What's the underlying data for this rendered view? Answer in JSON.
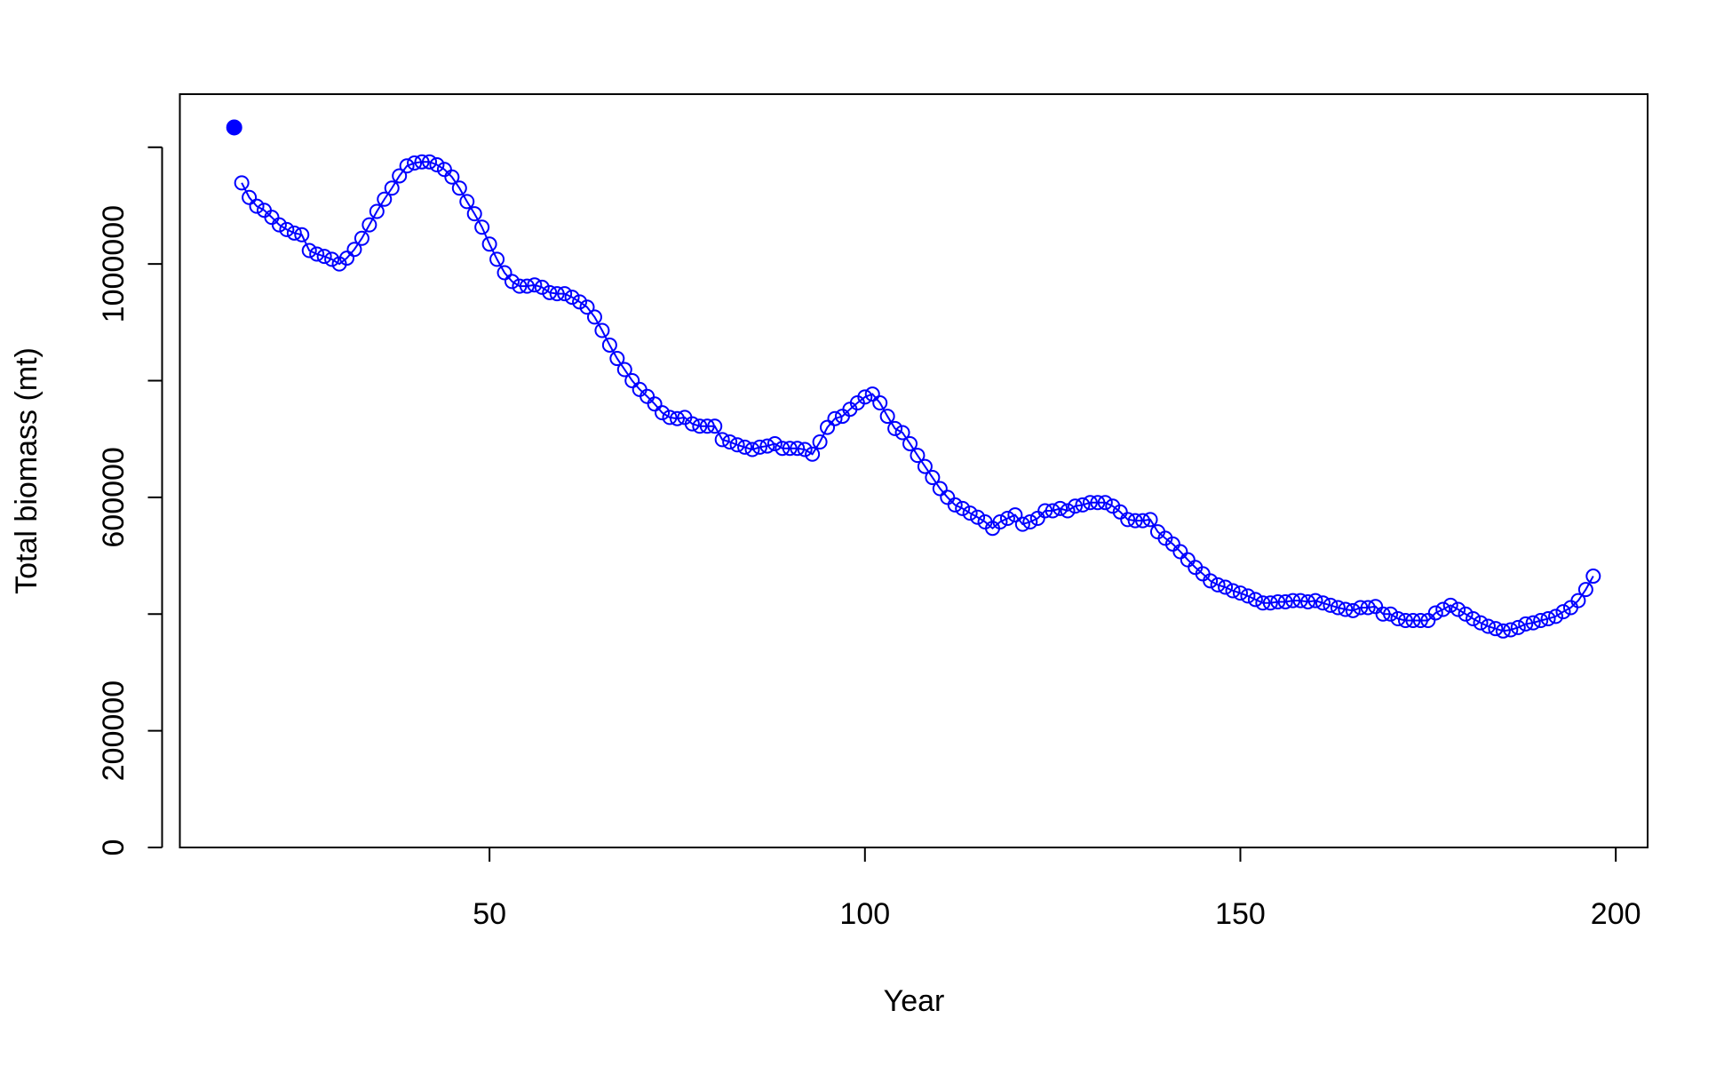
{
  "chart_data": {
    "type": "line",
    "xlabel": "Year",
    "ylabel": "Total biomass (mt)",
    "xlim": [
      8.76,
      204.24
    ],
    "xticks": [
      50,
      100,
      150,
      200
    ],
    "ylim": [
      0,
      1291000
    ],
    "yticks": [
      0,
      200000,
      600000,
      1000000
    ],
    "yticks_unlabeled": [
      400000,
      800000,
      1200000
    ],
    "color": "#0000ff",
    "highlight": {
      "x": 16,
      "value": 1234000
    },
    "x": [
      17,
      18,
      19,
      20,
      21,
      22,
      23,
      24,
      25,
      26,
      27,
      28,
      29,
      30,
      31,
      32,
      33,
      34,
      35,
      36,
      37,
      38,
      39,
      40,
      41,
      42,
      43,
      44,
      45,
      46,
      47,
      48,
      49,
      50,
      51,
      52,
      53,
      54,
      55,
      56,
      57,
      58,
      59,
      60,
      61,
      62,
      63,
      64,
      65,
      66,
      67,
      68,
      69,
      70,
      71,
      72,
      73,
      74,
      75,
      76,
      77,
      78,
      79,
      80,
      81,
      82,
      83,
      84,
      85,
      86,
      87,
      88,
      89,
      90,
      91,
      92,
      93,
      94,
      95,
      96,
      97,
      98,
      99,
      100,
      101,
      102,
      103,
      104,
      105,
      106,
      107,
      108,
      109,
      110,
      111,
      112,
      113,
      114,
      115,
      116,
      117,
      118,
      119,
      120,
      121,
      122,
      123,
      124,
      125,
      126,
      127,
      128,
      129,
      130,
      131,
      132,
      133,
      134,
      135,
      136,
      137,
      138,
      139,
      140,
      141,
      142,
      143,
      144,
      145,
      146,
      147,
      148,
      149,
      150,
      151,
      152,
      153,
      154,
      155,
      156,
      157,
      158,
      159,
      160,
      161,
      162,
      163,
      164,
      165,
      166,
      167,
      168,
      169,
      170,
      171,
      172,
      173,
      174,
      175,
      176,
      177,
      178,
      179,
      180,
      181,
      182,
      183,
      184,
      185,
      186,
      187,
      188,
      189,
      190,
      191,
      192,
      193,
      194,
      195,
      196,
      197
    ],
    "values": [
      1139000,
      1114000,
      1099000,
      1092000,
      1080000,
      1067000,
      1059000,
      1053000,
      1050000,
      1023000,
      1017000,
      1013000,
      1008000,
      1000000,
      1010000,
      1025000,
      1044000,
      1067000,
      1090000,
      1111000,
      1130000,
      1151000,
      1168000,
      1173000,
      1175000,
      1175000,
      1170000,
      1162000,
      1149000,
      1130000,
      1107000,
      1086000,
      1063000,
      1034000,
      1008000,
      985000,
      970000,
      962000,
      962000,
      964000,
      960000,
      951000,
      949000,
      949000,
      943000,
      935000,
      926000,
      909000,
      886000,
      861000,
      838000,
      819000,
      800000,
      785000,
      773000,
      760000,
      745000,
      737000,
      735000,
      737000,
      726000,
      722000,
      722000,
      722000,
      699000,
      695000,
      690000,
      686000,
      682000,
      686000,
      688000,
      692000,
      684000,
      684000,
      684000,
      682000,
      674000,
      695000,
      720000,
      735000,
      739000,
      751000,
      762000,
      772000,
      777000,
      762000,
      739000,
      718000,
      711000,
      692000,
      672000,
      653000,
      634000,
      615000,
      600000,
      587000,
      581000,
      573000,
      566000,
      558000,
      547000,
      558000,
      564000,
      570000,
      554000,
      558000,
      564000,
      577000,
      577000,
      581000,
      577000,
      585000,
      587000,
      591000,
      591000,
      591000,
      585000,
      575000,
      562000,
      560000,
      560000,
      562000,
      541000,
      530000,
      520000,
      507000,
      493000,
      480000,
      469000,
      457000,
      450000,
      446000,
      440000,
      436000,
      431000,
      425000,
      419000,
      419000,
      421000,
      421000,
      423000,
      423000,
      421000,
      423000,
      419000,
      415000,
      411000,
      408000,
      406000,
      411000,
      411000,
      413000,
      400000,
      400000,
      392000,
      389000,
      389000,
      389000,
      389000,
      402000,
      408000,
      415000,
      408000,
      400000,
      392000,
      385000,
      379000,
      375000,
      371000,
      373000,
      377000,
      383000,
      385000,
      389000,
      392000,
      396000,
      404000,
      411000,
      423000,
      442000,
      465000
    ]
  }
}
